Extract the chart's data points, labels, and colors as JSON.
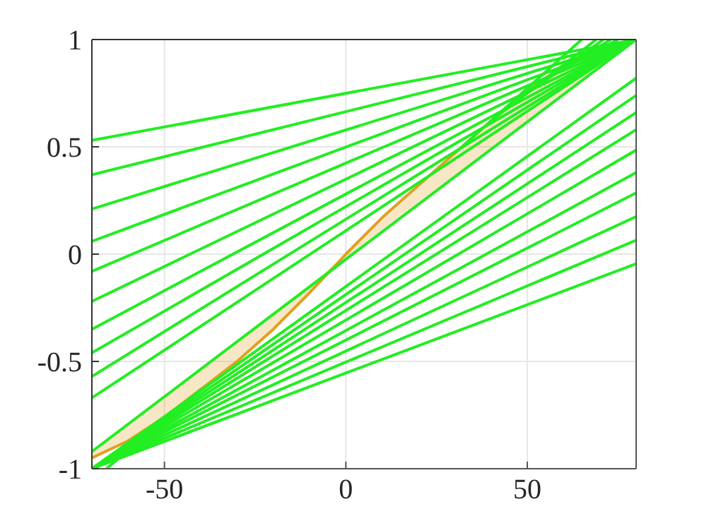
{
  "chart_data": {
    "type": "line",
    "xlim": [
      -70,
      80
    ],
    "ylim": [
      -1,
      1
    ],
    "xticks": [
      -50,
      0,
      50
    ],
    "yticks": [
      -1,
      -0.5,
      0,
      0.5,
      1
    ],
    "grid": true,
    "marker": "none",
    "line_style": "solid",
    "series": [
      {
        "color": "#e0a020",
        "x": [
          -70,
          -60,
          -50,
          -40,
          -30,
          -20,
          -10,
          0,
          10,
          20,
          30,
          40,
          50,
          60,
          70,
          80
        ],
        "values": [
          -0.95,
          -0.87,
          -0.76,
          -0.63,
          -0.5,
          -0.35,
          -0.18,
          0,
          0.17,
          0.32,
          0.47,
          0.62,
          0.76,
          0.88,
          0.96,
          1
        ],
        "lower": [
          -0.95,
          -0.87,
          -0.76,
          -0.63,
          -0.5,
          -0.35,
          -0.18,
          -0.024,
          0.104,
          0.232,
          0.36,
          0.488,
          0.616,
          0.744,
          0.872,
          1
        ],
        "upper": [
          -0.92,
          -0.792,
          -0.664,
          -0.536,
          -0.408,
          -0.28,
          -0.152,
          0,
          0.17,
          0.32,
          0.47,
          0.62,
          0.76,
          0.88,
          0.96,
          1
        ]
      },
      {
        "color": "#22ee22",
        "x": [
          -70,
          80
        ],
        "values": [
          -0.92,
          1
        ]
      },
      {
        "color": "#22ee22",
        "x": [
          -70,
          80
        ],
        "values": [
          0.53,
          1
        ]
      },
      {
        "color": "#22ee22",
        "x": [
          -70,
          80
        ],
        "values": [
          0.37,
          1
        ]
      },
      {
        "color": "#22ee22",
        "x": [
          -70,
          80
        ],
        "values": [
          0.21,
          1
        ]
      },
      {
        "color": "#22ee22",
        "x": [
          -70,
          80
        ],
        "values": [
          0.06,
          1
        ]
      },
      {
        "color": "#22ee22",
        "x": [
          -70,
          80
        ],
        "values": [
          -0.08,
          1
        ]
      },
      {
        "color": "#22ee22",
        "x": [
          -70,
          80
        ],
        "values": [
          -0.22,
          1
        ]
      },
      {
        "color": "#22ee22",
        "x": [
          -70,
          80
        ],
        "values": [
          -0.35,
          1
        ]
      },
      {
        "color": "#22ee22",
        "x": [
          -70,
          80
        ],
        "values": [
          -0.46,
          1
        ]
      },
      {
        "color": "#22ee22",
        "x": [
          -70,
          80
        ],
        "values": [
          -0.57,
          1
        ]
      },
      {
        "color": "#22ee22",
        "x": [
          -70,
          80
        ],
        "values": [
          -0.67,
          1
        ]
      },
      {
        "color": "#22ee22",
        "x": [
          -70,
          80
        ],
        "values": [
          -1,
          0.82
        ]
      },
      {
        "color": "#22ee22",
        "x": [
          -70,
          80
        ],
        "values": [
          -1,
          0.74
        ]
      },
      {
        "color": "#22ee22",
        "x": [
          -70,
          80
        ],
        "values": [
          -1,
          0.66
        ]
      },
      {
        "color": "#22ee22",
        "x": [
          -70,
          80
        ],
        "values": [
          -1,
          0.58
        ]
      },
      {
        "color": "#22ee22",
        "x": [
          -70,
          80
        ],
        "values": [
          -1,
          0.485
        ]
      },
      {
        "color": "#22ee22",
        "x": [
          -70,
          80
        ],
        "values": [
          -1,
          0.38
        ]
      },
      {
        "color": "#22ee22",
        "x": [
          -70,
          80
        ],
        "values": [
          -1,
          0.285
        ]
      },
      {
        "color": "#22ee22",
        "x": [
          -70,
          80
        ],
        "values": [
          -1,
          0.175
        ]
      },
      {
        "color": "#22ee22",
        "x": [
          -70,
          80
        ],
        "values": [
          -1,
          0.065
        ]
      },
      {
        "color": "#22ee22",
        "x": [
          -70,
          80
        ],
        "values": [
          -1,
          -0.045
        ]
      },
      {
        "color": "#22ee22",
        "x": [
          -66,
          -40
        ],
        "values": [
          -1,
          -0.63
        ]
      },
      {
        "color": "#22ee22",
        "x": [
          30,
          65
        ],
        "values": [
          0.47,
          1
        ]
      },
      {
        "color": "#22ee22",
        "x": [
          40,
          69
        ],
        "values": [
          0.62,
          1
        ]
      },
      {
        "color": "#22ee22",
        "x": [
          45,
          71
        ],
        "values": [
          0.69,
          1
        ]
      },
      {
        "color": "#22ee22",
        "x": [
          50,
          73
        ],
        "values": [
          0.76,
          1
        ]
      },
      {
        "color": "#22ee22",
        "x": [
          55,
          75
        ],
        "values": [
          0.82,
          1
        ]
      }
    ]
  }
}
